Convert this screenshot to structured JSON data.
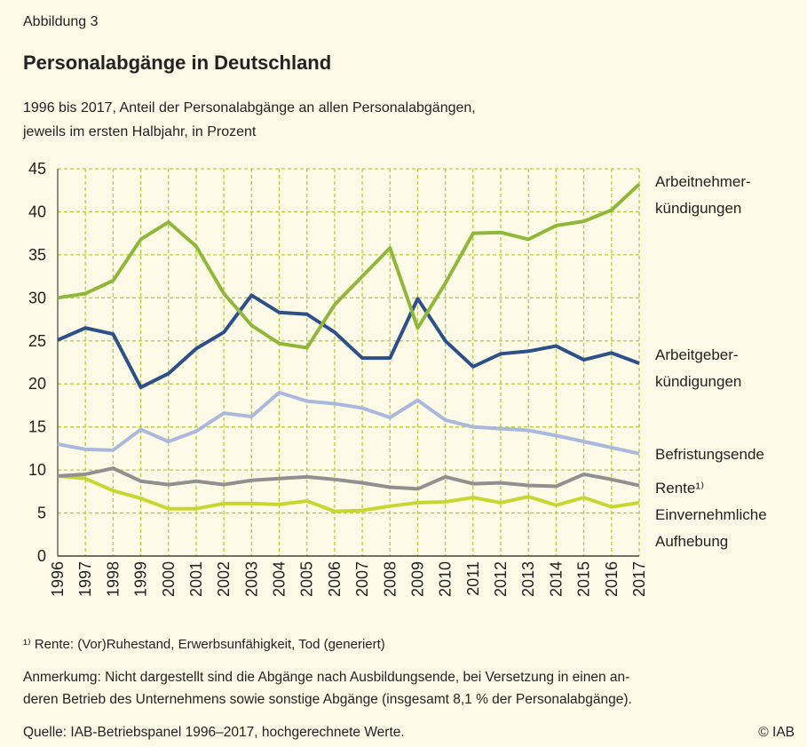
{
  "figure_label": "Abbildung 3",
  "chart_data": {
    "type": "line",
    "title": "Personalabgänge in Deutschland",
    "subtitle": "1996 bis 2017, Anteil der Personalabgänge an allen Personalabgängen,\njeweils im ersten Halbjahr, in Prozent",
    "categories": [
      "1996",
      "1997",
      "1998",
      "1999",
      "2000",
      "2001",
      "2002",
      "2003",
      "2004",
      "2005",
      "2006",
      "2007",
      "2008",
      "2009",
      "2010",
      "2011",
      "2012",
      "2013",
      "2014",
      "2015",
      "2016",
      "2017"
    ],
    "ylim": [
      0,
      45
    ],
    "yticks": [
      0,
      5,
      10,
      15,
      20,
      25,
      30,
      35,
      40,
      45
    ],
    "grid": true,
    "series": [
      {
        "name": "Arbeitnehmer-\nkündigungen",
        "color": "#8fb83a",
        "values": [
          30,
          30.5,
          32,
          36.8,
          38.8,
          36,
          30.5,
          26.8,
          24.7,
          24.2,
          29.2,
          32.5,
          35.8,
          26.5,
          31.7,
          37.5,
          37.6,
          36.8,
          38.4,
          38.9,
          40.2,
          43.2
        ]
      },
      {
        "name": "Arbeitgeber-\nkündigungen",
        "color": "#2d4f8a",
        "values": [
          25.1,
          26.5,
          25.8,
          19.6,
          21.2,
          24.1,
          26,
          30.3,
          28.3,
          28.1,
          26,
          23,
          23,
          29.9,
          25,
          22,
          23.5,
          23.8,
          24.4,
          22.8,
          23.6,
          22.4
        ]
      },
      {
        "name": "Befristungsende",
        "color": "#a9b8dc",
        "values": [
          13,
          12.4,
          12.3,
          14.7,
          13.3,
          14.5,
          16.6,
          16.2,
          19,
          18,
          17.7,
          17.2,
          16.1,
          18.1,
          15.8,
          15,
          14.8,
          14.6,
          14,
          13.3,
          12.6,
          11.9
        ]
      },
      {
        "name": "Rente¹⁾",
        "color": "#909090",
        "values": [
          9.3,
          9.5,
          10.2,
          8.7,
          8.3,
          8.7,
          8.3,
          8.8,
          9,
          9.2,
          8.9,
          8.5,
          8,
          7.8,
          9.2,
          8.4,
          8.5,
          8.2,
          8.1,
          9.5,
          8.9,
          8.2
        ]
      },
      {
        "name": "Einvernehmliche\nAufhebung",
        "color": "#c8d630",
        "values": [
          9.3,
          9,
          7.6,
          6.7,
          5.5,
          5.5,
          6.1,
          6.1,
          6,
          6.4,
          5.2,
          5.3,
          5.8,
          6.2,
          6.3,
          6.8,
          6.2,
          6.9,
          5.9,
          6.8,
          5.7,
          6.2
        ]
      }
    ]
  },
  "footnotes": [
    "¹⁾ Rente: (Vor)Ruhestand, Erwerbsunfähigkeit, Tod (generiert)",
    "Anmerkumg: Nicht dargestellt sind die Abgänge nach Ausbildungsende, bei Versetzung in einen an-\nderen Betrieb des Unternehmens sowie sonstige Abgänge (insgesamt 8,1 % der Personalabgänge).",
    "Quelle: IAB-Betriebspanel 1996–2017, hochgerechnete Werte."
  ],
  "copyright": "© IAB"
}
